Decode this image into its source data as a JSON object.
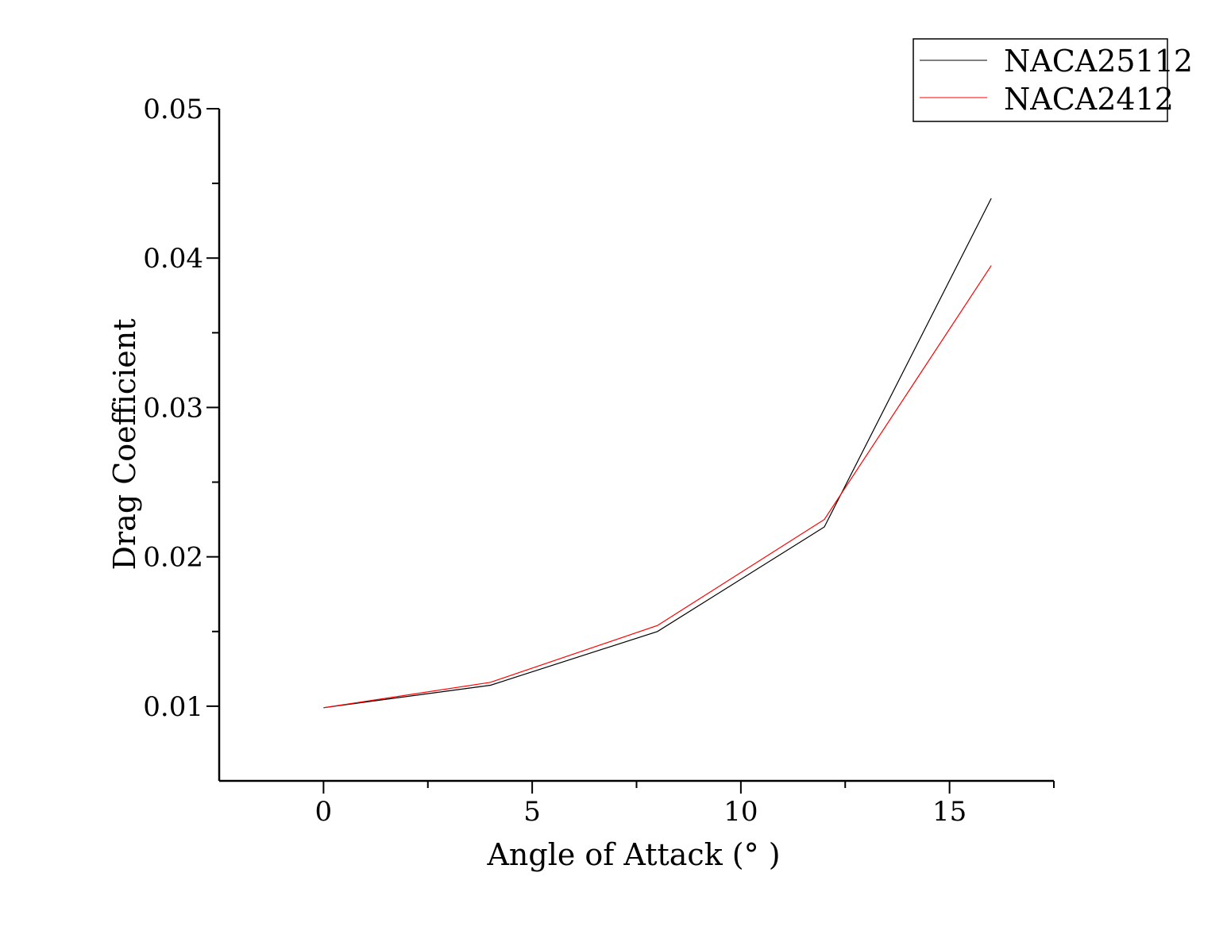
{
  "chart_data": {
    "type": "line",
    "xlabel": "Angle of Attack (° )",
    "ylabel": "Drag Coefficient",
    "xlim": [
      -2.5,
      17.5
    ],
    "ylim": [
      0.005,
      0.05
    ],
    "xticks": [
      0,
      5,
      10,
      15
    ],
    "xtick_labels": [
      "0",
      "5",
      "10",
      "15"
    ],
    "yticks": [
      0.01,
      0.02,
      0.03,
      0.04,
      0.05
    ],
    "ytick_labels": [
      "0.01",
      "0.02",
      "0.03",
      "0.04",
      "0.05"
    ],
    "x_minor_ticks": [
      2.5,
      7.5,
      12.5,
      17.5
    ],
    "y_minor_ticks": [
      0.015,
      0.025,
      0.035,
      0.045
    ],
    "grid": false,
    "legend_position": "top-right",
    "x": [
      0,
      4,
      8,
      12,
      16
    ],
    "series": [
      {
        "name": "NACA25112",
        "color": "#000000",
        "values": [
          0.0099,
          0.0114,
          0.015,
          0.022,
          0.044
        ]
      },
      {
        "name": "NACA2412",
        "color": "#ff0000",
        "values": [
          0.0099,
          0.0116,
          0.0154,
          0.0225,
          0.0395
        ]
      }
    ]
  }
}
